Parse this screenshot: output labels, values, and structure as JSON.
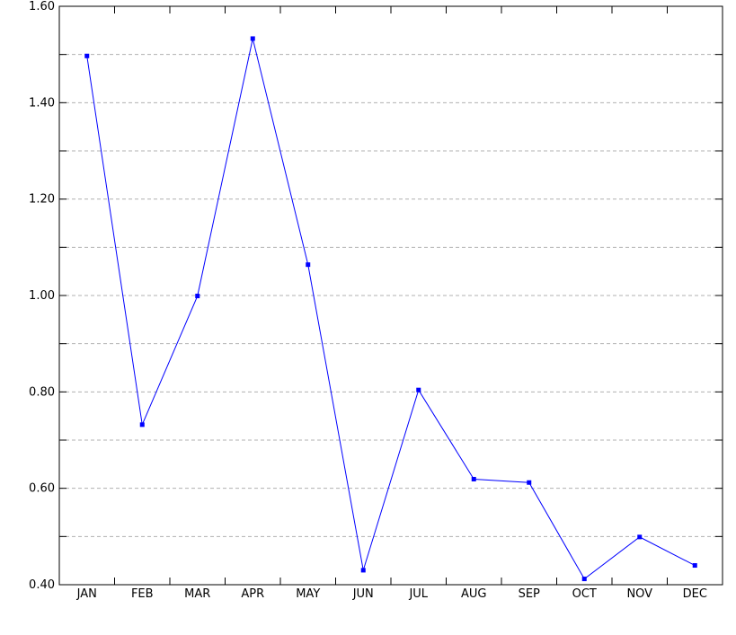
{
  "chart_data": {
    "type": "line",
    "title": "",
    "xlabel": "",
    "ylabel": "",
    "categories": [
      "JAN",
      "FEB",
      "MAR",
      "APR",
      "MAY",
      "JUN",
      "JUL",
      "AUG",
      "SEP",
      "OCT",
      "NOV",
      "DEC"
    ],
    "series": [
      {
        "values": [
          1.497,
          0.732,
          0.999,
          1.533,
          1.064,
          0.43,
          0.804,
          0.619,
          0.612,
          0.412,
          0.499,
          0.44
        ],
        "color": "#0000ff",
        "marker": "square"
      }
    ],
    "ylim": [
      0.4,
      1.6
    ],
    "yticks": [
      0.4,
      0.6,
      0.8,
      1.0,
      1.2,
      1.4,
      1.6
    ],
    "ytick_labels": [
      "0.40",
      "0.60",
      "0.80",
      "1.00",
      "1.20",
      "1.40",
      "1.60"
    ],
    "grid": true,
    "grid_style": "dashed",
    "legend": "none"
  }
}
